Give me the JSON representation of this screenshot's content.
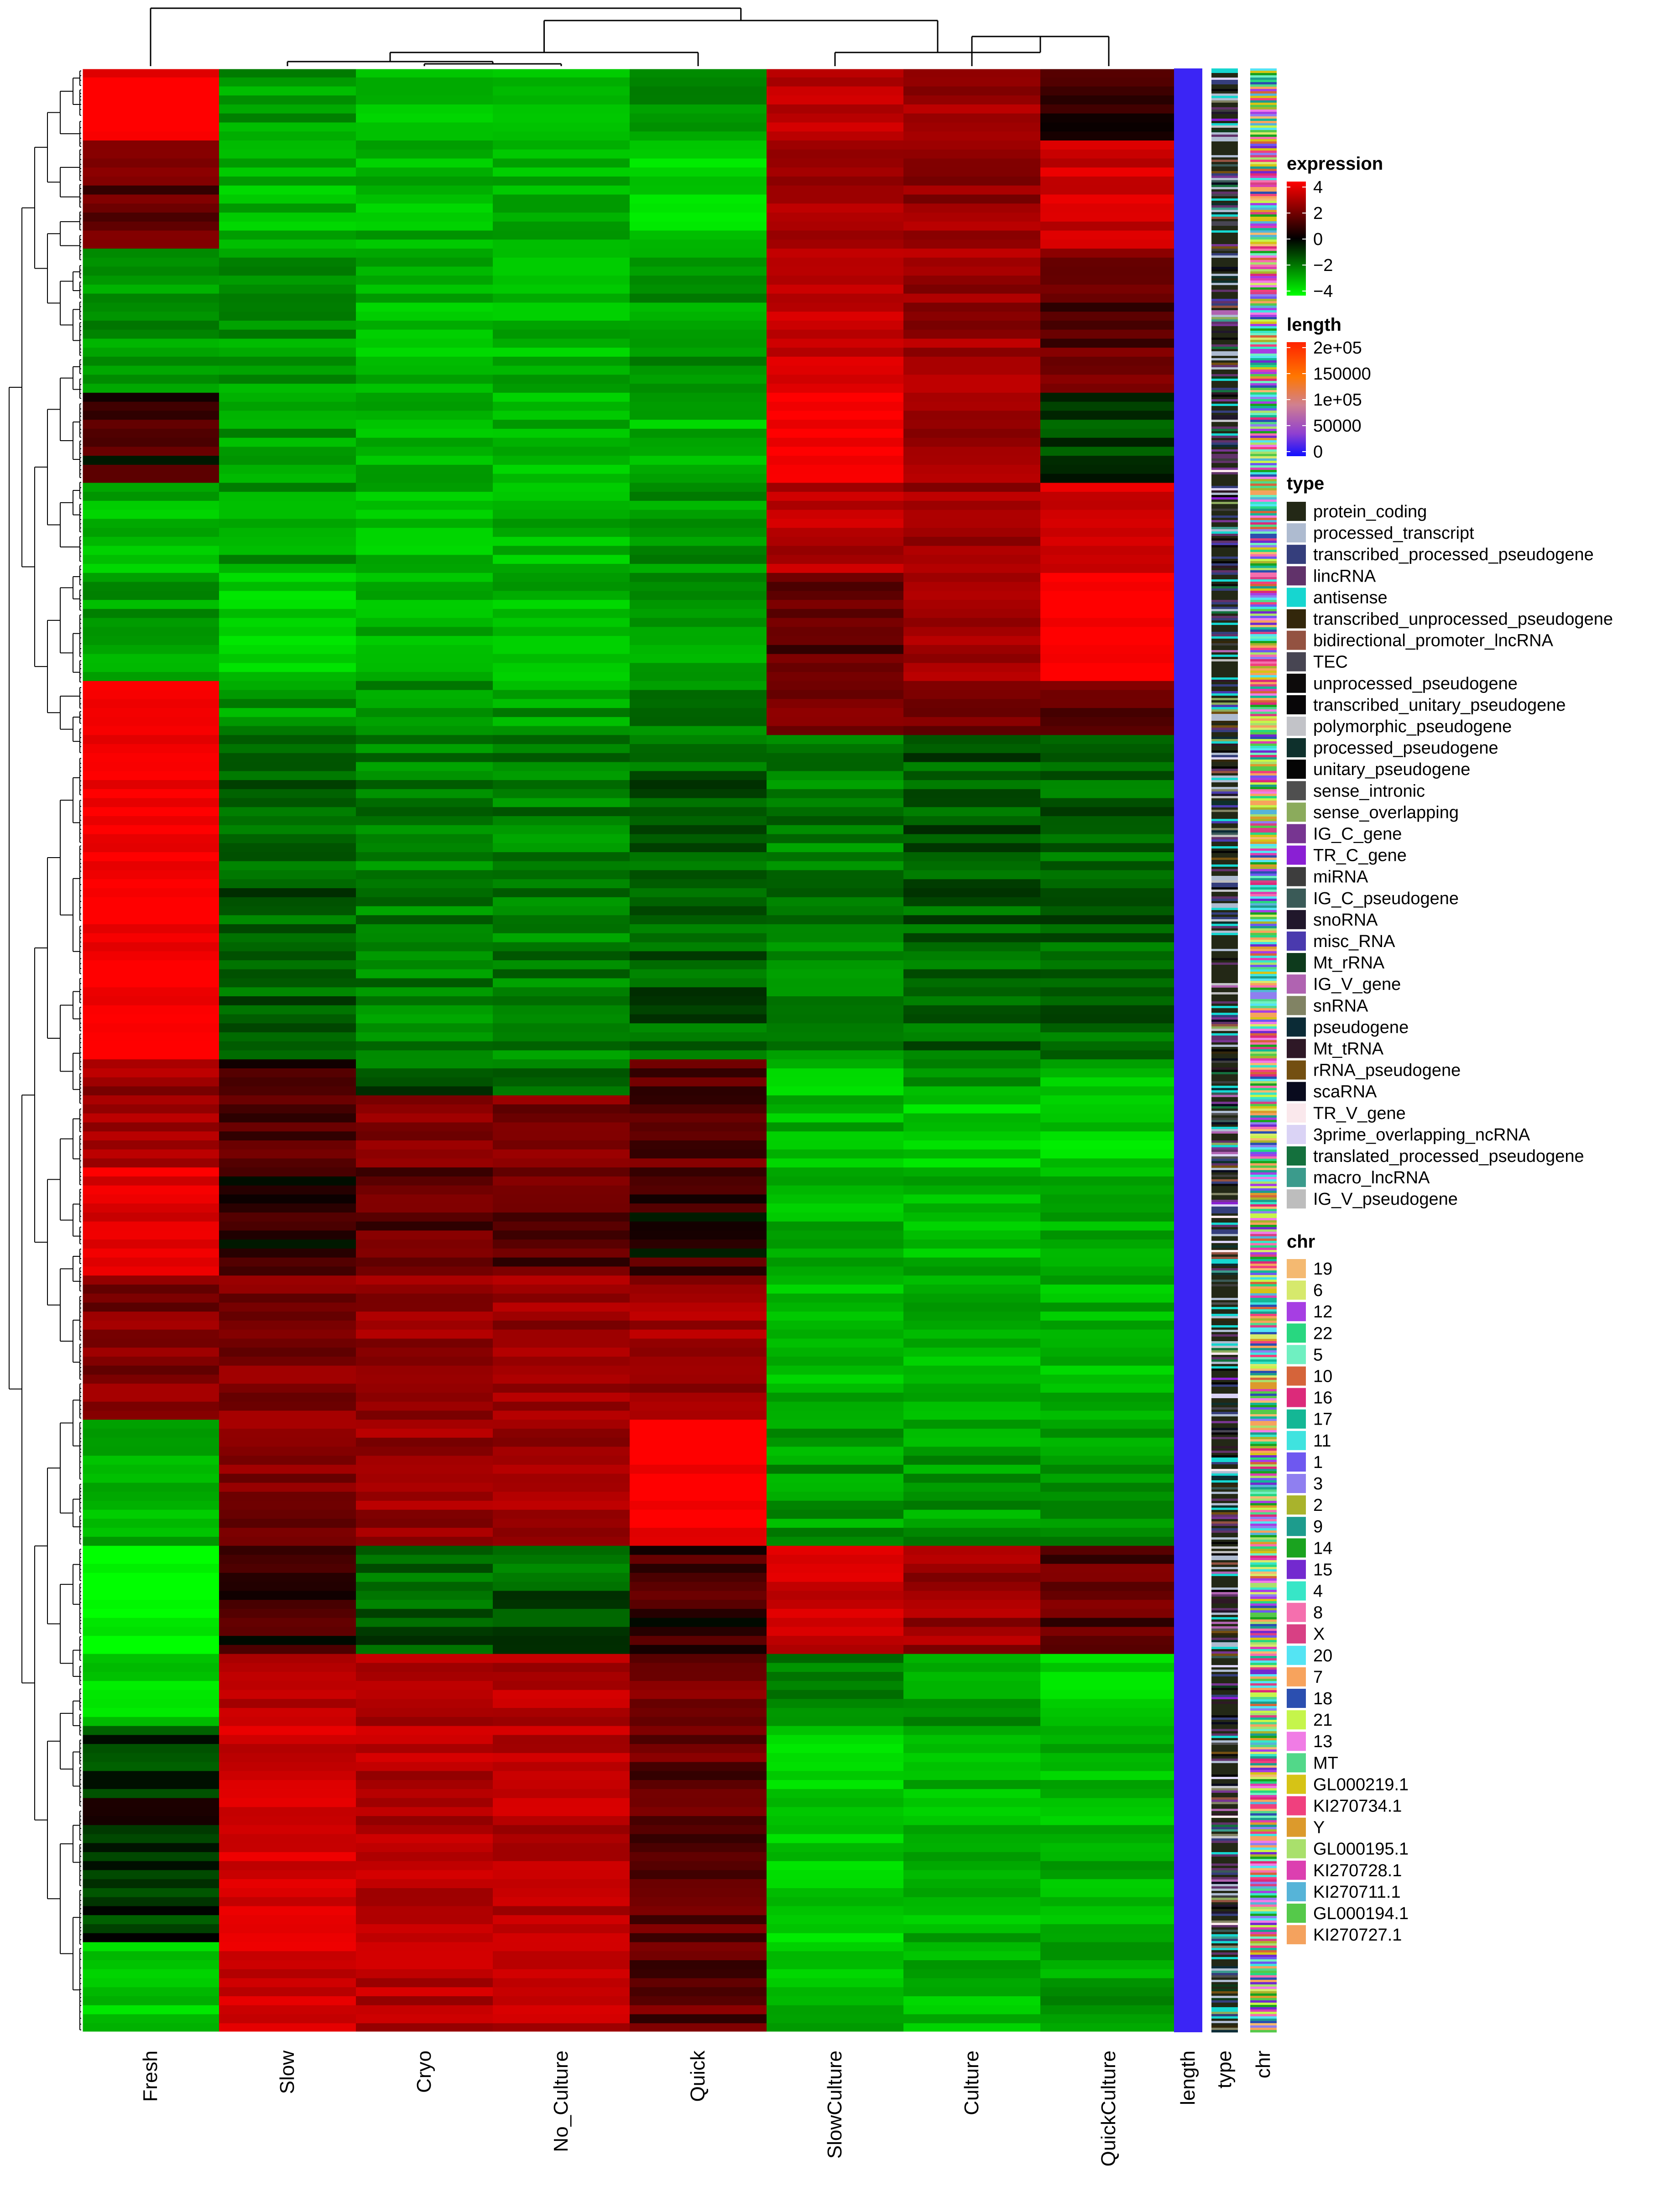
{
  "chart_data": {
    "type": "heatmap",
    "title": "",
    "columns": [
      "Fresh",
      "Slow",
      "Cryo",
      "No_Culture",
      "Quick",
      "SlowCulture",
      "Culture",
      "QuickCulture"
    ],
    "annotation_columns": [
      "length",
      "type",
      "chr"
    ],
    "color_scale": {
      "low": "#00ff00",
      "mid": "#000000",
      "high": "#ff0000"
    },
    "row_blocks": [
      {
        "rows": 8,
        "values": [
          4.0,
          -2.0,
          -2.5,
          -2.5,
          -2.0,
          2.5,
          2.0,
          0.5
        ]
      },
      {
        "rows": 12,
        "values": [
          1.0,
          -2.5,
          -2.5,
          -2.5,
          -3.0,
          2.0,
          2.0,
          3.0
        ]
      },
      {
        "rows": 16,
        "values": [
          -2.0,
          -2.0,
          -2.5,
          -2.5,
          -2.0,
          3.0,
          2.0,
          1.0
        ]
      },
      {
        "rows": 10,
        "values": [
          0.5,
          -2.0,
          -2.5,
          -2.5,
          -2.5,
          4.0,
          2.0,
          -0.5
        ]
      },
      {
        "rows": 10,
        "values": [
          -2.5,
          -2.0,
          -2.5,
          -2.5,
          -2.0,
          2.5,
          2.0,
          3.0
        ]
      },
      {
        "rows": 12,
        "values": [
          -2.0,
          -3.0,
          -2.5,
          -2.5,
          -2.0,
          1.0,
          2.0,
          4.0
        ]
      },
      {
        "rows": 6,
        "values": [
          3.5,
          -2.0,
          -2.0,
          -2.0,
          -1.5,
          1.5,
          1.0,
          1.0
        ]
      },
      {
        "rows": 36,
        "values": [
          4.0,
          -1.0,
          -1.5,
          -1.5,
          -1.0,
          -1.5,
          -1.0,
          -1.0
        ]
      },
      {
        "rows": 4,
        "values": [
          2.0,
          0.5,
          -1.0,
          -1.0,
          1.0,
          -3.0,
          -2.0,
          -2.5
        ]
      },
      {
        "rows": 8,
        "values": [
          2.0,
          1.0,
          1.5,
          1.5,
          1.0,
          -2.5,
          -3.0,
          -3.0
        ]
      },
      {
        "rows": 12,
        "values": [
          3.5,
          0.5,
          1.0,
          1.0,
          0.5,
          -2.5,
          -2.5,
          -2.5
        ]
      },
      {
        "rows": 16,
        "values": [
          1.5,
          1.5,
          2.0,
          2.0,
          2.0,
          -2.5,
          -2.5,
          -2.5
        ]
      },
      {
        "rows": 14,
        "values": [
          -2.5,
          1.5,
          2.0,
          2.0,
          4.0,
          -2.0,
          -2.0,
          -2.0
        ]
      },
      {
        "rows": 12,
        "values": [
          -4.0,
          0.5,
          -1.0,
          -1.0,
          0.5,
          3.0,
          2.0,
          1.0
        ]
      },
      {
        "rows": 8,
        "values": [
          -3.0,
          2.5,
          2.5,
          2.5,
          1.5,
          -1.5,
          -2.0,
          -3.0
        ]
      },
      {
        "rows": 24,
        "values": [
          -0.5,
          3.0,
          2.5,
          2.5,
          1.0,
          -3.0,
          -2.5,
          -2.5
        ]
      },
      {
        "rows": 10,
        "values": [
          -3.0,
          3.0,
          2.5,
          2.5,
          1.0,
          -2.5,
          -2.5,
          -2.0
        ]
      }
    ],
    "legends": {
      "expression": {
        "title": "expression",
        "ticks": [
          "4",
          "2",
          "0",
          "−2",
          "−4"
        ]
      },
      "length": {
        "title": "length",
        "ticks": [
          "2e+05",
          "150000",
          "1e+05",
          "50000",
          "0"
        ]
      },
      "type": {
        "title": "type",
        "items": [
          {
            "label": "protein_coding",
            "color": "#232816"
          },
          {
            "label": "processed_transcript",
            "color": "#aebbd0"
          },
          {
            "label": "transcribed_processed_pseudogene",
            "color": "#353e7c"
          },
          {
            "label": "lincRNA",
            "color": "#61326a"
          },
          {
            "label": "antisense",
            "color": "#16d6d0"
          },
          {
            "label": "transcribed_unprocessed_pseudogene",
            "color": "#33270b"
          },
          {
            "label": "bidirectional_promoter_lncRNA",
            "color": "#935241"
          },
          {
            "label": "TEC",
            "color": "#474552"
          },
          {
            "label": "unprocessed_pseudogene",
            "color": "#0d0b0b"
          },
          {
            "label": "transcribed_unitary_pseudogene",
            "color": "#080608"
          },
          {
            "label": "polymorphic_pseudogene",
            "color": "#c2c3c8"
          },
          {
            "label": "processed_pseudogene",
            "color": "#0e302c"
          },
          {
            "label": "unitary_pseudogene",
            "color": "#050505"
          },
          {
            "label": "sense_intronic",
            "color": "#4f4f4f"
          },
          {
            "label": "sense_overlapping",
            "color": "#8bab5c"
          },
          {
            "label": "IG_C_gene",
            "color": "#773591"
          },
          {
            "label": "TR_C_gene",
            "color": "#8a1fd4"
          },
          {
            "label": "miRNA",
            "color": "#3d3d3d"
          },
          {
            "label": "IG_C_pseudogene",
            "color": "#3a5a57"
          },
          {
            "label": "snoRNA",
            "color": "#20172b"
          },
          {
            "label": "misc_RNA",
            "color": "#4a3aae"
          },
          {
            "label": "Mt_rRNA",
            "color": "#0d3a1c"
          },
          {
            "label": "IG_V_gene",
            "color": "#b063b1"
          },
          {
            "label": "snRNA",
            "color": "#818364"
          },
          {
            "label": "pseudogene",
            "color": "#0b2b36"
          },
          {
            "label": "Mt_tRNA",
            "color": "#2e1826"
          },
          {
            "label": "rRNA_pseudogene",
            "color": "#734f11"
          },
          {
            "label": "scaRNA",
            "color": "#090b1e"
          },
          {
            "label": "TR_V_gene",
            "color": "#fae8ec"
          },
          {
            "label": "3prime_overlapping_ncRNA",
            "color": "#dad3f5"
          },
          {
            "label": "translated_processed_pseudogene",
            "color": "#14703d"
          },
          {
            "label": "macro_lncRNA",
            "color": "#3b9b8c"
          },
          {
            "label": "IG_V_pseudogene",
            "color": "#bdbdbd"
          }
        ]
      },
      "chr": {
        "title": "chr",
        "items": [
          {
            "label": "19",
            "color": "#f4b971"
          },
          {
            "label": "6",
            "color": "#d6e96c"
          },
          {
            "label": "12",
            "color": "#a63ee3"
          },
          {
            "label": "22",
            "color": "#28d780"
          },
          {
            "label": "5",
            "color": "#6ff0c1"
          },
          {
            "label": "10",
            "color": "#d5643a"
          },
          {
            "label": "16",
            "color": "#dc2a7a"
          },
          {
            "label": "17",
            "color": "#14b795"
          },
          {
            "label": "11",
            "color": "#3fe3df"
          },
          {
            "label": "1",
            "color": "#6e58f0"
          },
          {
            "label": "3",
            "color": "#8f7ff0"
          },
          {
            "label": "2",
            "color": "#a9b32c"
          },
          {
            "label": "9",
            "color": "#1d9c8d"
          },
          {
            "label": "14",
            "color": "#1aa31f"
          },
          {
            "label": "15",
            "color": "#7329cf"
          },
          {
            "label": "4",
            "color": "#37e6c7"
          },
          {
            "label": "8",
            "color": "#f56fae"
          },
          {
            "label": "X",
            "color": "#d84084"
          },
          {
            "label": "20",
            "color": "#54e4f3"
          },
          {
            "label": "7",
            "color": "#f7a35d"
          },
          {
            "label": "18",
            "color": "#2b4fb0"
          },
          {
            "label": "21",
            "color": "#c5f54b"
          },
          {
            "label": "13",
            "color": "#f07ce5"
          },
          {
            "label": "MT",
            "color": "#52d889"
          },
          {
            "label": "GL000219.1",
            "color": "#d6c316"
          },
          {
            "label": "KI270734.1",
            "color": "#f0407e"
          },
          {
            "label": "Y",
            "color": "#dc9a2c"
          },
          {
            "label": "GL000195.1",
            "color": "#a9e06c"
          },
          {
            "label": "KI270728.1",
            "color": "#dc3fb0"
          },
          {
            "label": "KI270711.1",
            "color": "#56b4d8"
          },
          {
            "label": "GL000194.1",
            "color": "#55c94a"
          },
          {
            "label": "KI270727.1",
            "color": "#f4a25e"
          }
        ]
      }
    }
  }
}
